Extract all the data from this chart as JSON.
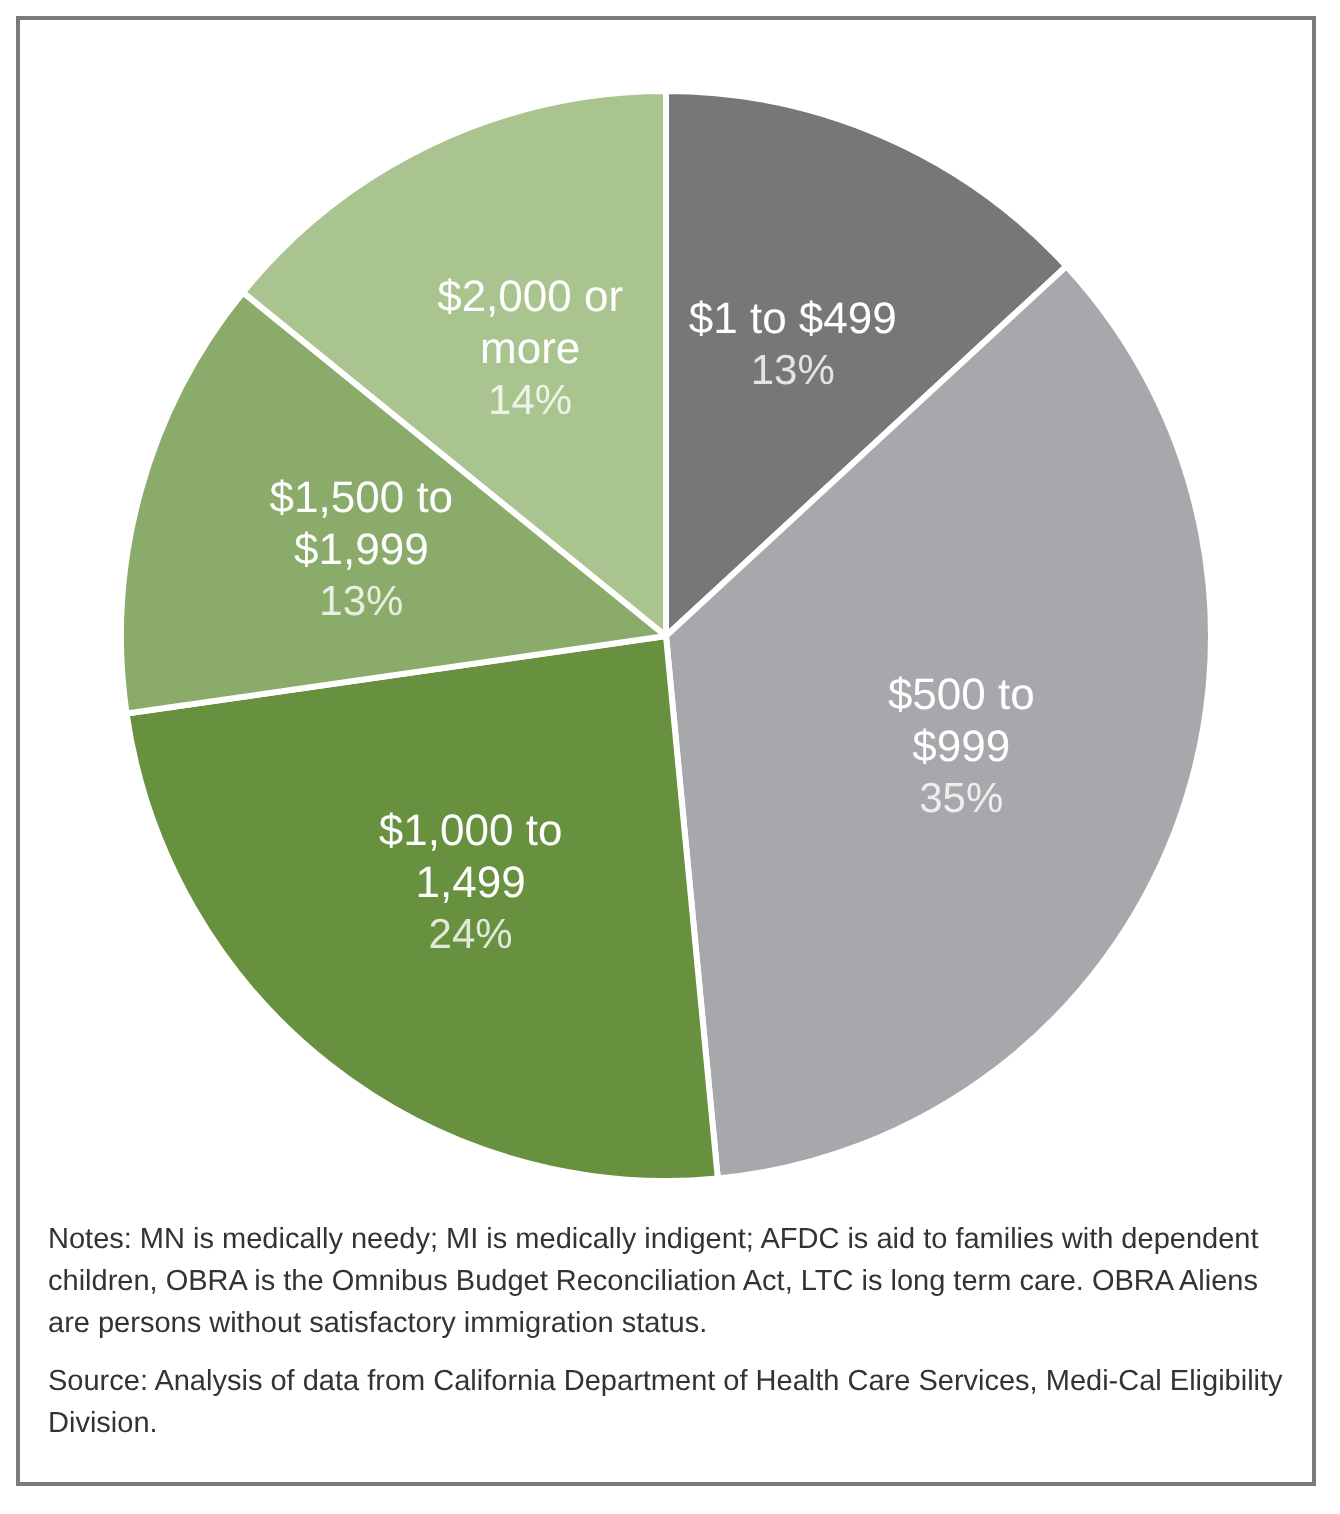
{
  "chart_data": {
    "type": "pie",
    "categories": [
      "$1 to $499",
      "$500 to $999",
      "$1,000 to 1,499",
      "$1,500 to $1,999",
      "$2,000 or more"
    ],
    "values": [
      13,
      35,
      24,
      13,
      14
    ],
    "value_labels": [
      "13%",
      "35%",
      "24%",
      "13%",
      "14%"
    ],
    "colors": [
      "#77777a",
      "#a7a8ab",
      "#67903f",
      "#8aab6a",
      "#a9c48e"
    ],
    "legend": false,
    "annotations": [
      "Notes: MN is medically needy; MI is medically indigent; AFDC is aid to families with dependent children, OBRA is the Omnibus Budget Reconciliation Act, LTC is long term care. OBRA Aliens are persons without satisfactory immigration status.",
      "Source: Analysis of data from California Department of Health Care Services, Medi-Cal Eligibility Division."
    ]
  }
}
